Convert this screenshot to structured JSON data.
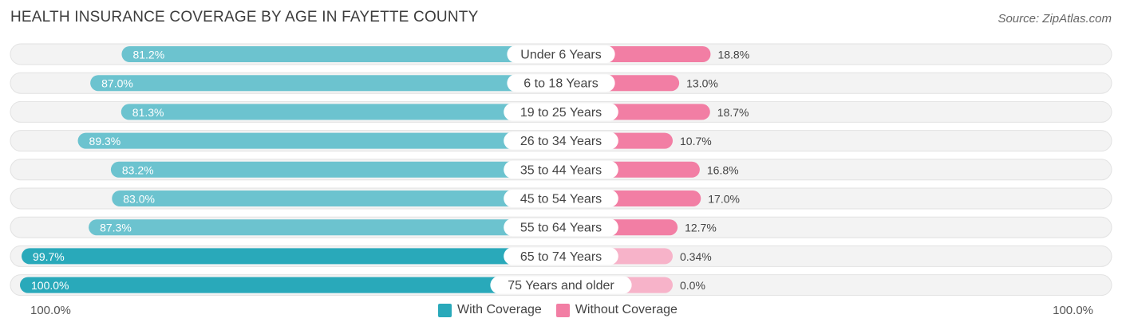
{
  "title": "HEALTH INSURANCE COVERAGE BY AGE IN FAYETTE COUNTY",
  "source": "Source: ZipAtlas.com",
  "colors": {
    "with_coverage": "#6cc3cf",
    "with_coverage_strong": "#29a9ba",
    "without_coverage": "#f27ea4",
    "without_coverage_light": "#f7b3c9",
    "row_bg": "#f2f2f2"
  },
  "chart_data": {
    "type": "bar",
    "orientation": "horizontal-diverging",
    "title": "HEALTH INSURANCE COVERAGE BY AGE IN FAYETTE COUNTY",
    "categories": [
      "Under 6 Years",
      "6 to 18 Years",
      "19 to 25 Years",
      "26 to 34 Years",
      "35 to 44 Years",
      "45 to 54 Years",
      "55 to 64 Years",
      "65 to 74 Years",
      "75 Years and older"
    ],
    "series": [
      {
        "name": "With Coverage",
        "values": [
          81.2,
          87.0,
          81.3,
          89.3,
          83.2,
          83.0,
          87.3,
          99.7,
          100.0
        ],
        "labels": [
          "81.2%",
          "87.0%",
          "81.3%",
          "89.3%",
          "83.2%",
          "83.0%",
          "87.3%",
          "99.7%",
          "100.0%"
        ]
      },
      {
        "name": "Without Coverage",
        "values": [
          18.8,
          13.0,
          18.7,
          10.7,
          16.8,
          17.0,
          12.7,
          0.34,
          0.0
        ],
        "labels": [
          "18.8%",
          "13.0%",
          "18.7%",
          "10.7%",
          "16.8%",
          "17.0%",
          "12.7%",
          "0.34%",
          "0.0%"
        ]
      }
    ],
    "xlim": [
      0,
      100
    ],
    "axis_left_label": "100.0%",
    "axis_right_label": "100.0%",
    "legend": [
      "With Coverage",
      "Without Coverage"
    ],
    "legend_position": "bottom-center"
  }
}
